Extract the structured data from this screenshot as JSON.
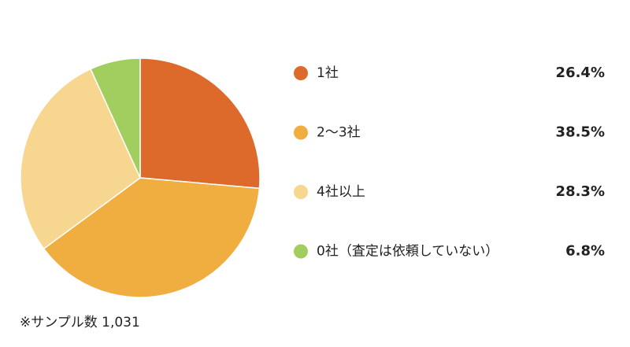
{
  "chart_data": {
    "type": "pie",
    "categories": [
      "1社",
      "2〜3社",
      "4社以上",
      "0社（査定は依頼していない）"
    ],
    "values": [
      26.4,
      38.5,
      28.3,
      6.8
    ],
    "value_labels": [
      "26.4%",
      "38.5%",
      "28.3%",
      "6.8%"
    ],
    "colors": [
      "#dd6a2a",
      "#f0ad40",
      "#f7d690",
      "#a2cd5f"
    ],
    "note": "※サンプル数 1,031"
  }
}
